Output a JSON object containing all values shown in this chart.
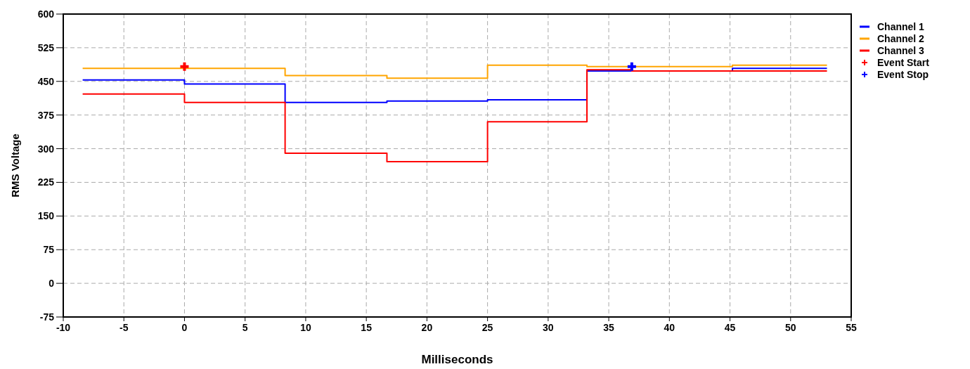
{
  "chart_data": {
    "type": "step",
    "xlabel": "Milliseconds",
    "ylabel": "RMS Voltage",
    "xlim": [
      -10,
      55
    ],
    "xticks": [
      -10,
      -5,
      0,
      5,
      10,
      15,
      20,
      25,
      30,
      35,
      40,
      45,
      50,
      55
    ],
    "ylim": [
      -75,
      600
    ],
    "yticks": [
      -75,
      0,
      75,
      150,
      225,
      300,
      375,
      450,
      525,
      600
    ],
    "grid": true,
    "legend": "right",
    "line_style": "solid",
    "series": [
      {
        "name": "Channel 1",
        "color": "#0000ff",
        "x": [
          -8.4,
          0,
          8.3,
          16.7,
          25,
          33.2,
          45.2,
          53
        ],
        "values": [
          453,
          444,
          403,
          406,
          409,
          473,
          479,
          479
        ]
      },
      {
        "name": "Channel 2",
        "color": "#ffa500",
        "x": [
          -8.4,
          0,
          8.3,
          16.7,
          25,
          33.2,
          45.2,
          53
        ],
        "values": [
          479,
          479,
          463,
          457,
          486,
          483,
          486,
          486
        ]
      },
      {
        "name": "Channel 3",
        "color": "#ff0000",
        "x": [
          -8.4,
          0,
          8.3,
          16.7,
          25,
          33.2,
          36.9,
          53
        ],
        "values": [
          422,
          403,
          290,
          271,
          360,
          476,
          473,
          473
        ]
      },
      {
        "name": "Event Start",
        "type": "scatter",
        "marker": "cross",
        "color": "#ff0000",
        "x": [
          0
        ],
        "values": [
          483
        ]
      },
      {
        "name": "Event Stop",
        "type": "scatter",
        "marker": "cross",
        "color": "#0000ff",
        "x": [
          36.9
        ],
        "values": [
          483
        ]
      }
    ]
  }
}
